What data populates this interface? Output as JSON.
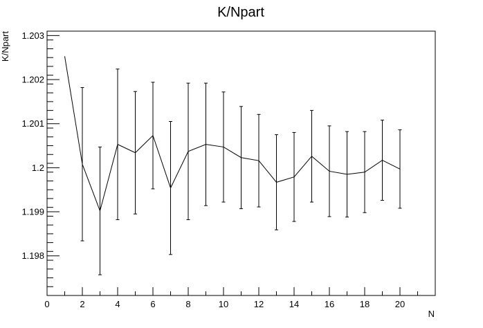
{
  "chart_data": {
    "type": "line",
    "title": "K/Npart",
    "xlabel": "N",
    "ylabel": "K/Npart",
    "xlim": [
      0,
      22
    ],
    "ylim": [
      1.1971,
      1.2031
    ],
    "grid": false,
    "x_major_ticks": [
      0,
      2,
      4,
      6,
      8,
      10,
      12,
      14,
      16,
      18,
      20
    ],
    "x_tick_labels": [
      "0",
      "2",
      "4",
      "6",
      "8",
      "10",
      "12",
      "14",
      "16",
      "18",
      "20"
    ],
    "y_major_ticks": [
      1.198,
      1.199,
      1.2,
      1.201,
      1.202,
      1.203
    ],
    "y_tick_labels": [
      "1.198",
      "1.199",
      "1.2",
      "1.201",
      "1.202",
      "1.203"
    ],
    "series": [
      {
        "x": [
          1,
          2,
          3,
          4,
          5,
          6,
          7,
          8,
          9,
          10,
          11,
          12,
          13,
          14,
          15,
          16,
          17,
          18,
          19,
          20
        ],
        "y": [
          1.20253,
          1.20008,
          1.19902,
          1.20053,
          1.20034,
          1.20073,
          1.19954,
          1.20037,
          1.20053,
          1.20047,
          1.20023,
          1.20016,
          1.19967,
          1.19979,
          1.20026,
          1.19992,
          1.19985,
          1.1999,
          1.20017,
          1.19997
        ],
        "yerr": [
          null,
          0.00174,
          0.00145,
          0.00171,
          0.00139,
          0.00121,
          0.00151,
          0.00155,
          0.00139,
          0.00125,
          0.00116,
          0.00105,
          0.00108,
          0.00101,
          0.00104,
          0.00103,
          0.00097,
          0.00092,
          0.00091,
          0.00089
        ]
      }
    ]
  }
}
